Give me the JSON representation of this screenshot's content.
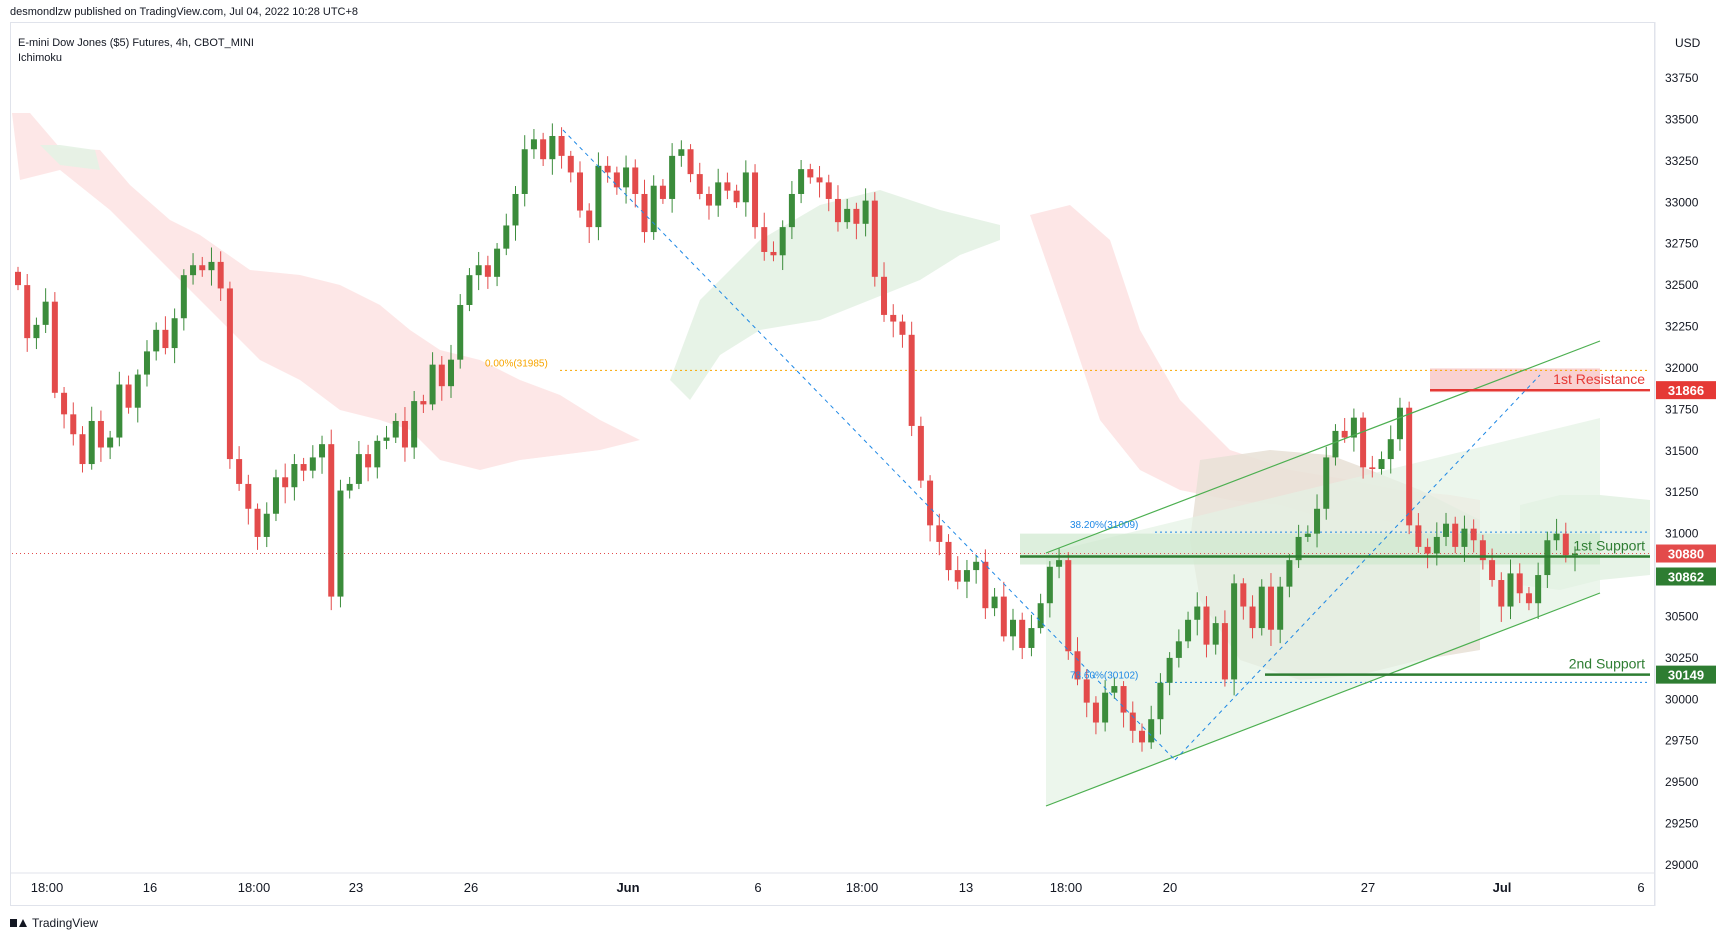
{
  "header": {
    "published": "desmondlzw published on TradingView.com, Jul 04, 2022 10:28 UTC+8"
  },
  "symbol": {
    "title": "E-mini Dow Jones ($5) Futures, 4h, CBOT_MINI",
    "indicator": "Ichimoku"
  },
  "footer": {
    "brand": "TradingView",
    "logo_icon": "tradingview-logo-icon"
  },
  "colors": {
    "up": "#3b8c3b",
    "down": "#e34b4b",
    "resistance": "#e53935",
    "support": "#2e7d32",
    "fib": "#1e88e5",
    "fib_orange": "#f7a600",
    "cloud_red": "#fde3e3",
    "cloud_green": "#e4f2e4"
  },
  "chart_data": {
    "type": "candlestick",
    "currency": "USD",
    "ylim": [
      29000,
      33900
    ],
    "y_ticks": [
      29000,
      29250,
      29500,
      29750,
      30000,
      30250,
      30500,
      30750,
      31000,
      31250,
      31500,
      31750,
      32000,
      32250,
      32500,
      32750,
      33000,
      33250,
      33500,
      33750
    ],
    "x_ticks": [
      "18:00",
      "16",
      "18:00",
      "23",
      "26",
      "Jun",
      "6",
      "18:00",
      "13",
      "18:00",
      "20",
      "27",
      "Jul",
      "6"
    ],
    "price_labels": [
      {
        "text": "31866",
        "value": 31866,
        "style": "resistance"
      },
      {
        "text": "30880",
        "value": 30880,
        "style": "current"
      },
      {
        "text": "30862",
        "value": 30862,
        "style": "support"
      },
      {
        "text": "30149",
        "value": 30149,
        "style": "support"
      }
    ],
    "levels": [
      {
        "name": "1st Resistance",
        "value": 31866
      },
      {
        "name": "1st Support",
        "value": 30862
      },
      {
        "name": "2nd Support",
        "value": 30149
      }
    ],
    "fib_labels": [
      {
        "text": "0.00%(31985)",
        "value": 31985
      },
      {
        "text": "38.20%(31009)",
        "value": 31009
      },
      {
        "text": "78.60%(30102)",
        "value": 30102
      }
    ],
    "closes": [
      32500,
      32180,
      32260,
      32400,
      31850,
      31720,
      31600,
      31420,
      31680,
      31520,
      31580,
      31900,
      31760,
      31960,
      32100,
      32230,
      32120,
      32300,
      32560,
      32620,
      32590,
      32640,
      32480,
      31450,
      31300,
      31150,
      30980,
      31120,
      31340,
      31280,
      31420,
      31380,
      31460,
      31540,
      30620,
      31260,
      31300,
      31480,
      31400,
      31560,
      31580,
      31680,
      31520,
      31800,
      31780,
      32020,
      31890,
      32050,
      32380,
      32560,
      32620,
      32550,
      32720,
      32860,
      33050,
      33320,
      33380,
      33260,
      33400,
      33280,
      33180,
      32950,
      32850,
      33220,
      33180,
      33090,
      33210,
      33050,
      32820,
      33100,
      33020,
      33280,
      33320,
      33170,
      33050,
      32980,
      33120,
      33070,
      33000,
      33180,
      32850,
      32700,
      32680,
      32850,
      33050,
      33200,
      33150,
      33120,
      33020,
      32880,
      32960,
      32870,
      33010,
      32550,
      32320,
      32280,
      32200,
      31650,
      31320,
      31050,
      30950,
      30780,
      30710,
      30780,
      30830,
      30550,
      30620,
      30380,
      30480,
      30310,
      30430,
      30580,
      30800,
      30840,
      30290,
      30120,
      29980,
      29860,
      30040,
      30080,
      29920,
      29810,
      29740,
      29880,
      30100,
      30250,
      30350,
      30480,
      30560,
      30330,
      30460,
      30120,
      30700,
      30560,
      30430,
      30680,
      30420,
      30680,
      30840,
      30980,
      31000,
      31150,
      31460,
      31620,
      31580,
      31700,
      31400,
      31390,
      31450,
      31570,
      31760,
      31050,
      30920,
      30880,
      30980,
      31060,
      30920,
      31030,
      30960,
      30840,
      30720,
      30560,
      30760,
      30640,
      30580,
      30750,
      30960,
      31000,
      30870,
      30880
    ],
    "x_range": [
      "May 13",
      "Jul 6"
    ]
  }
}
